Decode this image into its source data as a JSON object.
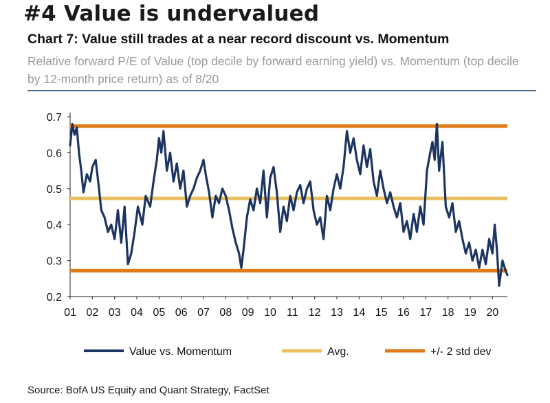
{
  "page": {
    "headline": "#4 Value is undervalued",
    "source": "Source: BofA US Equity and Quant Strategy, FactSet"
  },
  "chart_data": {
    "type": "line",
    "title": "Chart 7: Value still trades at a near record discount vs. Momentum",
    "subtitle": "Relative forward P/E of Value (top decile by forward earning yield) vs. Momentum (top decile by 12-month price return) as of 8/20",
    "xlabel": "",
    "ylabel": "",
    "xlim": [
      2001.0,
      2020.67
    ],
    "ylim": [
      0.2,
      0.7
    ],
    "yticks": [
      "0.7",
      "0.6",
      "0.5",
      "0.4",
      "0.3",
      "0.2"
    ],
    "xticks": [
      "01",
      "02",
      "03",
      "04",
      "05",
      "06",
      "07",
      "08",
      "09",
      "10",
      "11",
      "12",
      "13",
      "14",
      "15",
      "16",
      "17",
      "18",
      "19",
      "20"
    ],
    "grid": false,
    "legend_position": "bottom",
    "series": [
      {
        "name": "Value vs. Momentum",
        "color": "#1c3461",
        "x": [
          2001.0,
          2001.1,
          2001.2,
          2001.3,
          2001.4,
          2001.5,
          2001.6,
          2001.75,
          2001.9,
          2002.0,
          2002.15,
          2002.3,
          2002.4,
          2002.55,
          2002.7,
          2002.85,
          2003.0,
          2003.15,
          2003.3,
          2003.45,
          2003.6,
          2003.75,
          2003.9,
          2004.05,
          2004.25,
          2004.4,
          2004.6,
          2004.75,
          2004.9,
          2005.0,
          2005.1,
          2005.2,
          2005.35,
          2005.5,
          2005.65,
          2005.8,
          2005.95,
          2006.1,
          2006.25,
          2006.4,
          2006.55,
          2006.7,
          2006.85,
          2007.0,
          2007.1,
          2007.25,
          2007.4,
          2007.55,
          2007.7,
          2007.85,
          2008.0,
          2008.15,
          2008.3,
          2008.45,
          2008.6,
          2008.7,
          2008.8,
          2008.95,
          2009.1,
          2009.25,
          2009.4,
          2009.55,
          2009.7,
          2009.85,
          2010.0,
          2010.15,
          2010.3,
          2010.45,
          2010.6,
          2010.75,
          2010.9,
          2011.05,
          2011.2,
          2011.35,
          2011.5,
          2011.65,
          2011.8,
          2011.95,
          2012.1,
          2012.25,
          2012.4,
          2012.55,
          2012.7,
          2012.85,
          2013.0,
          2013.15,
          2013.3,
          2013.45,
          2013.6,
          2013.75,
          2013.9,
          2014.05,
          2014.2,
          2014.35,
          2014.5,
          2014.65,
          2014.8,
          2014.95,
          2015.1,
          2015.25,
          2015.4,
          2015.55,
          2015.7,
          2015.85,
          2016.0,
          2016.15,
          2016.3,
          2016.45,
          2016.6,
          2016.75,
          2016.9,
          2017.05,
          2017.2,
          2017.3,
          2017.4,
          2017.5,
          2017.6,
          2017.75,
          2017.9,
          2018.05,
          2018.2,
          2018.35,
          2018.5,
          2018.65,
          2018.8,
          2018.95,
          2019.1,
          2019.25,
          2019.4,
          2019.55,
          2019.7,
          2019.85,
          2020.0,
          2020.1,
          2020.2,
          2020.3,
          2020.45,
          2020.6,
          2020.67
        ],
        "y": [
          0.62,
          0.68,
          0.65,
          0.67,
          0.6,
          0.55,
          0.49,
          0.54,
          0.52,
          0.56,
          0.58,
          0.5,
          0.44,
          0.42,
          0.38,
          0.4,
          0.36,
          0.44,
          0.35,
          0.45,
          0.29,
          0.32,
          0.38,
          0.45,
          0.4,
          0.48,
          0.45,
          0.52,
          0.58,
          0.64,
          0.6,
          0.66,
          0.55,
          0.6,
          0.52,
          0.57,
          0.5,
          0.55,
          0.45,
          0.48,
          0.5,
          0.53,
          0.55,
          0.58,
          0.54,
          0.49,
          0.42,
          0.48,
          0.46,
          0.5,
          0.48,
          0.44,
          0.39,
          0.35,
          0.32,
          0.28,
          0.33,
          0.42,
          0.47,
          0.44,
          0.5,
          0.46,
          0.55,
          0.42,
          0.53,
          0.56,
          0.49,
          0.38,
          0.45,
          0.41,
          0.48,
          0.44,
          0.49,
          0.51,
          0.46,
          0.5,
          0.52,
          0.44,
          0.4,
          0.42,
          0.36,
          0.48,
          0.44,
          0.5,
          0.54,
          0.5,
          0.56,
          0.66,
          0.6,
          0.64,
          0.58,
          0.54,
          0.62,
          0.56,
          0.61,
          0.52,
          0.48,
          0.55,
          0.5,
          0.46,
          0.49,
          0.45,
          0.42,
          0.46,
          0.38,
          0.41,
          0.36,
          0.43,
          0.38,
          0.45,
          0.4,
          0.55,
          0.6,
          0.63,
          0.58,
          0.68,
          0.55,
          0.63,
          0.45,
          0.42,
          0.46,
          0.38,
          0.41,
          0.36,
          0.32,
          0.35,
          0.3,
          0.33,
          0.28,
          0.33,
          0.29,
          0.36,
          0.32,
          0.4,
          0.33,
          0.23,
          0.3,
          0.27,
          0.26
        ]
      },
      {
        "name": "Avg.",
        "color": "#e8c062",
        "x": [
          2001.0,
          2020.67
        ],
        "y": [
          0.473,
          0.473
        ]
      },
      {
        "name": "+/- 2 std dev",
        "color": "#e07d1a",
        "x": [
          2001.0,
          2020.67
        ],
        "y": [
          0.674,
          0.674
        ],
        "lower_y": [
          0.272,
          0.272
        ]
      }
    ]
  }
}
